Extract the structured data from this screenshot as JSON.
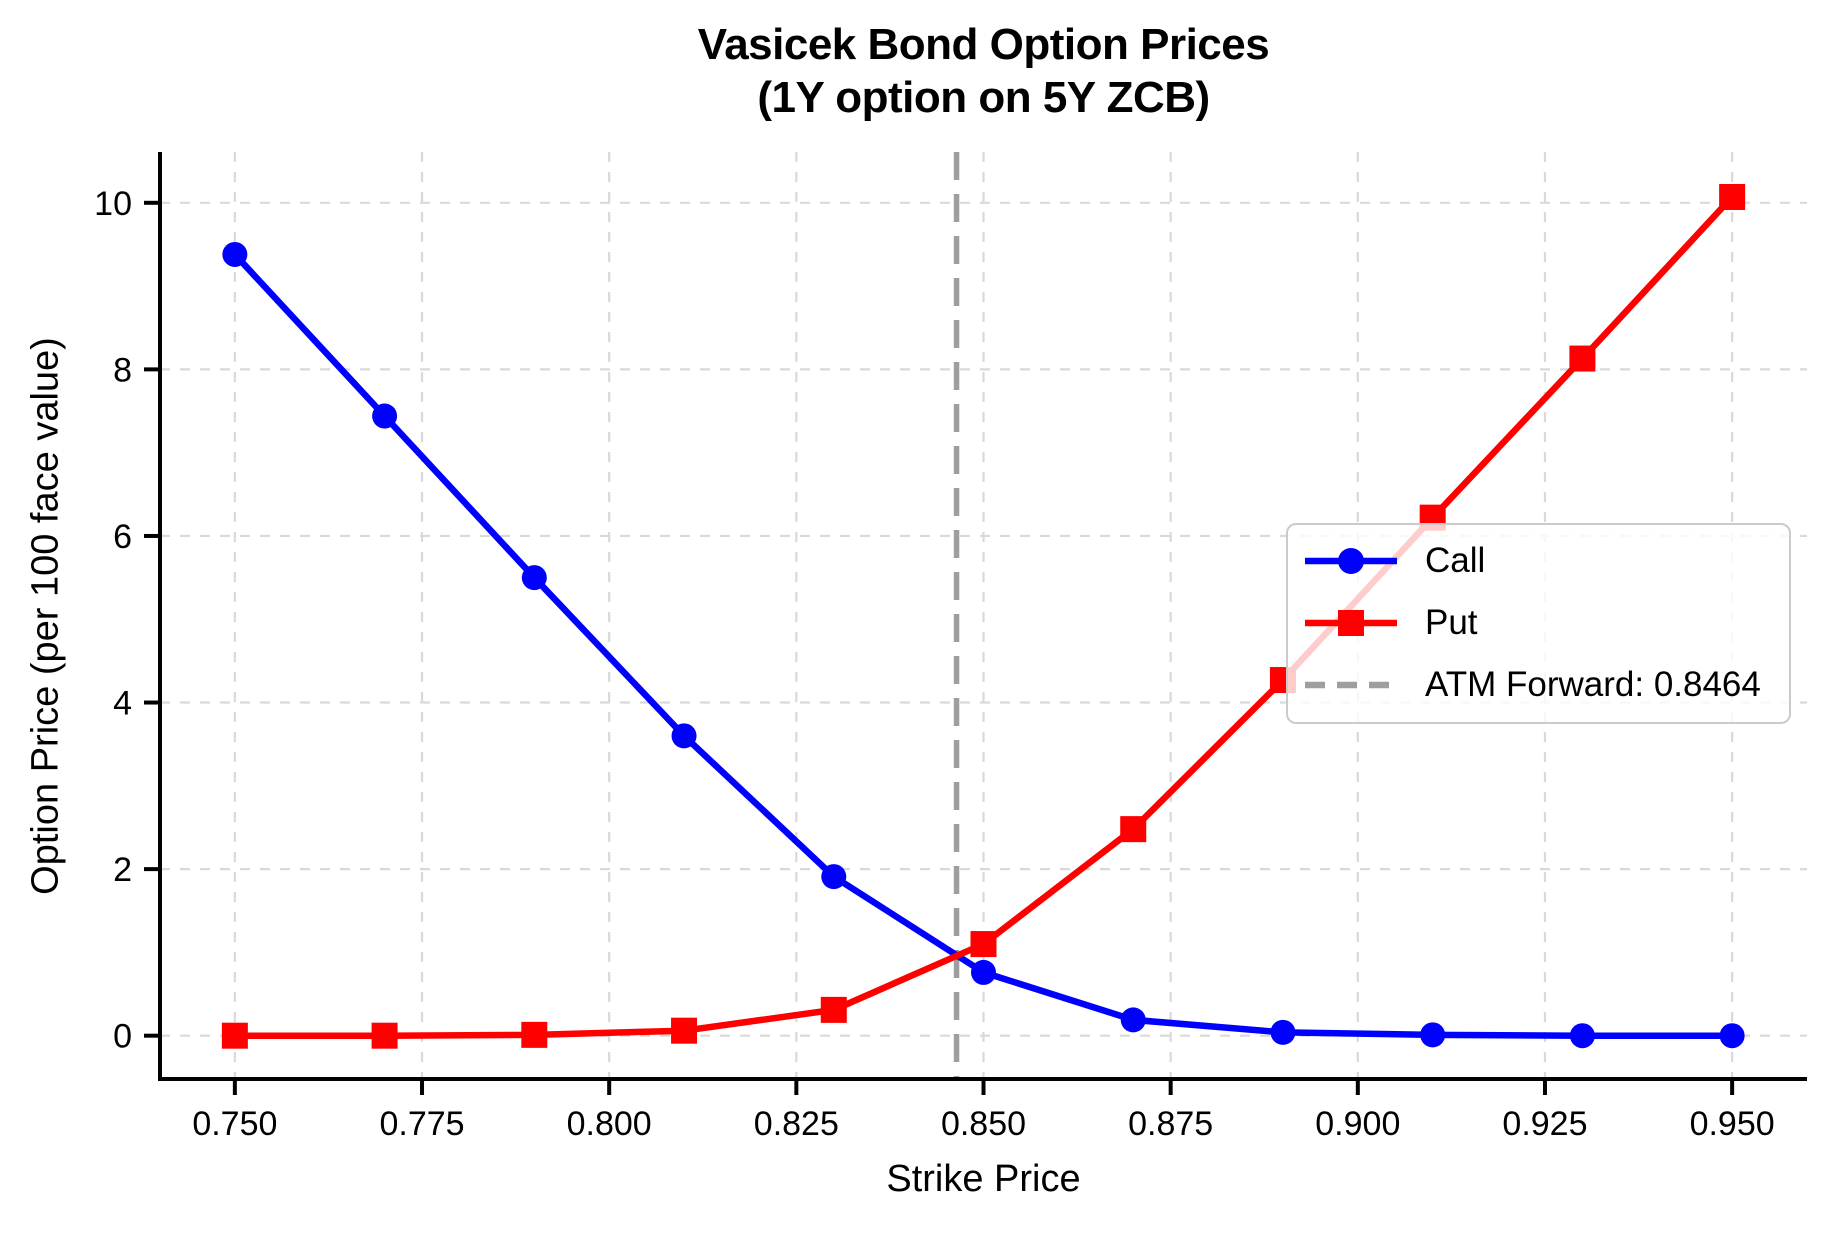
{
  "chart_data": {
    "type": "line",
    "title": "Vasicek Bond Option Prices",
    "subtitle": "(1Y option on 5Y ZCB)",
    "xlabel": "Strike Price",
    "ylabel": "Option Price (per 100 face value)",
    "x": [
      0.75,
      0.77,
      0.79,
      0.81,
      0.83,
      0.85,
      0.87,
      0.89,
      0.91,
      0.93,
      0.95
    ],
    "series": [
      {
        "name": "Call",
        "color": "#0000ff",
        "marker": "circle",
        "values": [
          9.38,
          7.44,
          5.5,
          3.6,
          1.91,
          0.76,
          0.19,
          0.04,
          0.01,
          0.0,
          0.0
        ]
      },
      {
        "name": "Put",
        "color": "#ff0000",
        "marker": "square",
        "values": [
          0.0,
          0.0,
          0.01,
          0.06,
          0.31,
          1.1,
          2.48,
          4.27,
          6.22,
          8.13,
          10.07
        ]
      }
    ],
    "atm_line": {
      "value": 0.8464,
      "label": "ATM Forward: 0.8464",
      "color": "#9e9e9e",
      "style": "dashed"
    },
    "x_ticks": {
      "values": [
        0.75,
        0.775,
        0.8,
        0.825,
        0.85,
        0.875,
        0.9,
        0.925,
        0.95
      ],
      "labels": [
        "0.750",
        "0.775",
        "0.800",
        "0.825",
        "0.850",
        "0.875",
        "0.900",
        "0.925",
        "0.950"
      ]
    },
    "y_ticks": {
      "values": [
        0,
        2,
        4,
        6,
        8,
        10
      ],
      "labels": [
        "0",
        "2",
        "4",
        "6",
        "8",
        "10"
      ]
    },
    "xlim": [
      0.74,
      0.96
    ],
    "ylim": [
      -0.52,
      10.61
    ],
    "grid": true,
    "legend": {
      "position": "center right",
      "items": [
        {
          "label": "Call",
          "color": "#0000ff",
          "marker": "circle",
          "line": "solid"
        },
        {
          "label": "Put",
          "color": "#ff0000",
          "marker": "square",
          "line": "solid"
        },
        {
          "label": "ATM Forward: 0.8464",
          "color": "#9e9e9e",
          "marker": "none",
          "line": "dashed"
        }
      ]
    },
    "colors": {
      "grid": "#d9d9d9",
      "axis": "#000000",
      "background": "#ffffff"
    }
  }
}
